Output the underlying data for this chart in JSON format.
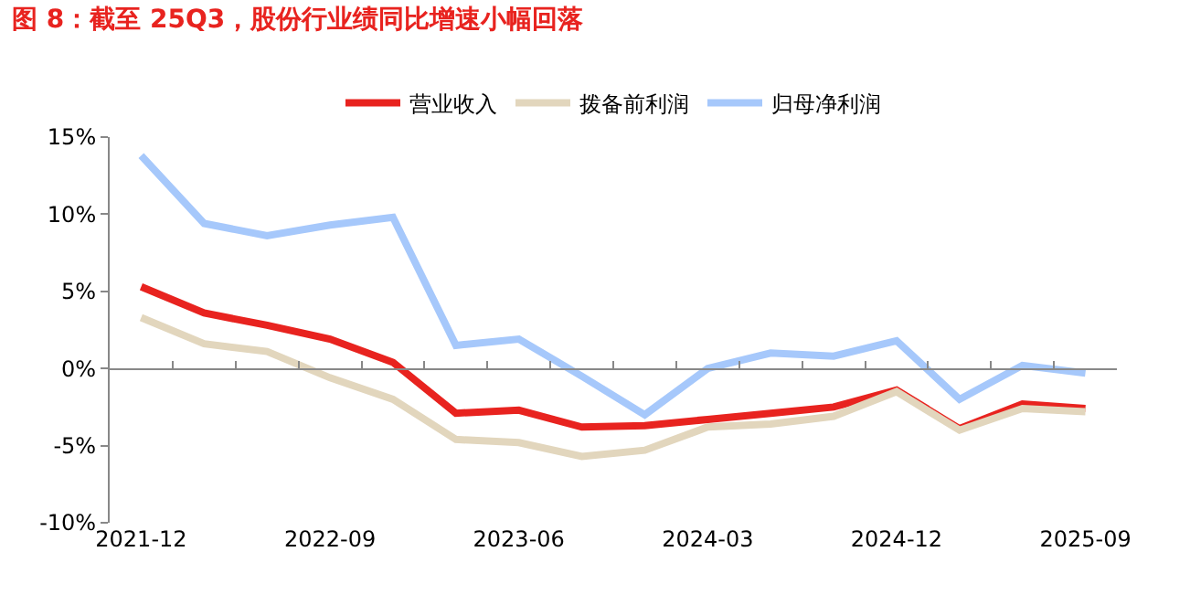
{
  "chart_data": {
    "type": "line",
    "title": "图 8：截至 25Q3，股份行业绩同比增速小幅回落",
    "categories": [
      "2021-12",
      null,
      null,
      "2022-09",
      null,
      null,
      "2023-06",
      null,
      null,
      "2024-03",
      null,
      null,
      "2024-12",
      null,
      null,
      "2025-09"
    ],
    "series": [
      {
        "name": "营业收入",
        "color": "#e8231f",
        "values": [
          5.3,
          3.6,
          2.8,
          1.9,
          0.4,
          -2.9,
          -2.7,
          -3.8,
          -3.7,
          -3.3,
          -2.9,
          -2.5,
          -1.4,
          -3.9,
          -2.3,
          -2.6
        ]
      },
      {
        "name": "拨备前利润",
        "color": "#e2d6bd",
        "values": [
          3.3,
          1.6,
          1.1,
          -0.6,
          -2.0,
          -4.6,
          -4.8,
          -5.7,
          -5.3,
          -3.8,
          -3.6,
          -3.1,
          -1.5,
          -4.0,
          -2.6,
          -2.8
        ]
      },
      {
        "name": "归母净利润",
        "color": "#a6c8fb",
        "values": [
          13.8,
          9.4,
          8.6,
          9.3,
          9.8,
          1.5,
          1.9,
          -0.5,
          -3.0,
          0.0,
          1.0,
          0.8,
          1.8,
          -2.0,
          0.2,
          -0.3
        ]
      }
    ],
    "ylim": [
      -10,
      15
    ],
    "yticks": [
      {
        "value": -10,
        "label": "-10%"
      },
      {
        "value": -5,
        "label": "-5%"
      },
      {
        "value": 0,
        "label": "0%"
      },
      {
        "value": 5,
        "label": "5%"
      },
      {
        "value": 10,
        "label": "10%"
      },
      {
        "value": 15,
        "label": "15%"
      }
    ],
    "legend": "top",
    "marker": "none",
    "line_style": "solid"
  }
}
